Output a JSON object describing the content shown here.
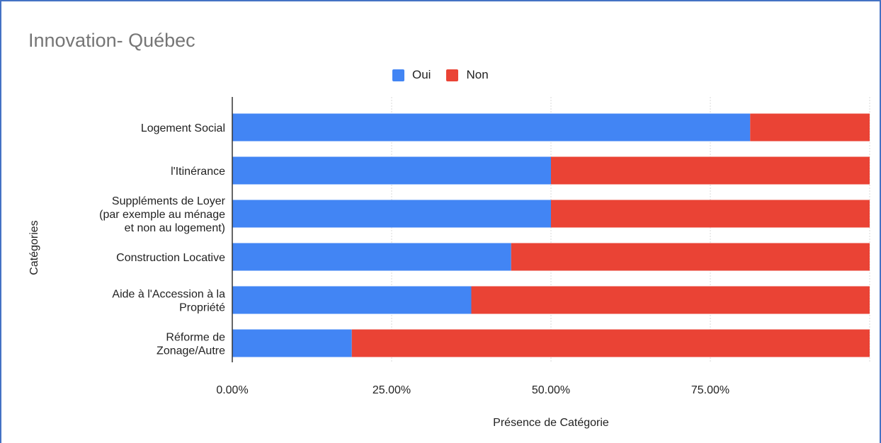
{
  "colors": {
    "oui": "#4285f4",
    "non": "#ea4335",
    "title": "#757575",
    "frame": "#4472c4"
  },
  "chart_data": {
    "type": "bar",
    "orientation": "horizontal",
    "stacked": true,
    "title": "Innovation- Québec",
    "xlabel": "Présence de Catégorie",
    "ylabel": "Catégories",
    "legend_position": "top",
    "xlim": [
      0,
      1
    ],
    "x_ticks": [
      "0.00%",
      "25.00%",
      "50.00%",
      "75.00%"
    ],
    "x_tick_values": [
      0,
      0.25,
      0.5,
      0.75
    ],
    "categories": [
      [
        "Logement Social"
      ],
      [
        "l'Itinérance"
      ],
      [
        "Suppléments de Loyer",
        "(par exemple au ménage",
        "et non au logement)"
      ],
      [
        "Construction Locative"
      ],
      [
        "Aide à l'Accession à la",
        "Propriété"
      ],
      [
        "Réforme de",
        "Zonage/Autre"
      ]
    ],
    "series": [
      {
        "name": "Oui",
        "values": [
          0.8125,
          0.5,
          0.5,
          0.4375,
          0.375,
          0.1875
        ]
      },
      {
        "name": "Non",
        "values": [
          0.1875,
          0.5,
          0.5,
          0.5625,
          0.625,
          0.8125
        ]
      }
    ]
  }
}
